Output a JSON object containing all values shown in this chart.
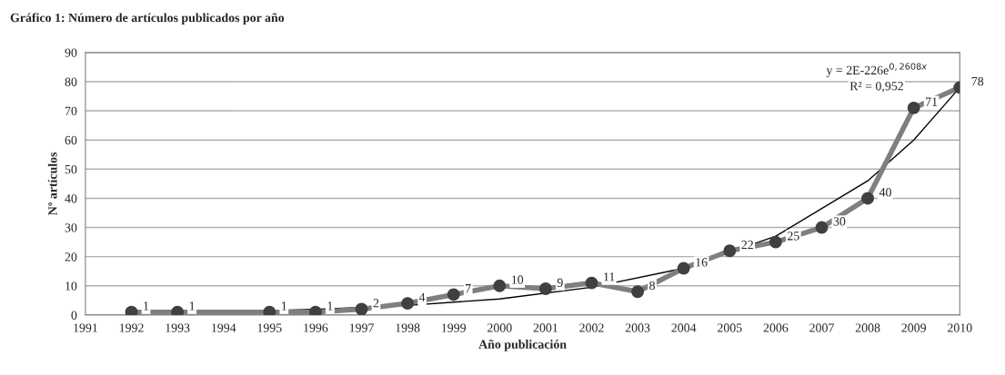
{
  "chart_data": {
    "type": "line",
    "title": "Gráfico 1: Número de artículos publicados por año",
    "xlabel": "Año publicación",
    "ylabel": "Nº artículos",
    "xlim": [
      1991,
      2010
    ],
    "xticks": [
      1991,
      1992,
      1993,
      1994,
      1995,
      1996,
      1997,
      1998,
      1999,
      2000,
      2001,
      2002,
      2003,
      2004,
      2005,
      2006,
      2007,
      2008,
      2009,
      2010
    ],
    "ylim": [
      0,
      90
    ],
    "yticks": [
      0,
      10,
      20,
      30,
      40,
      50,
      60,
      70,
      80,
      90
    ],
    "grid": "y",
    "marker": "circle",
    "series": [
      {
        "color": "#7f7f7f",
        "x": [
          1992,
          1993,
          1995,
          1996,
          1997,
          1998,
          1999,
          2000,
          2001,
          2002,
          2003,
          2004,
          2005,
          2006,
          2007,
          2008,
          2009,
          2010
        ],
        "values": [
          1,
          1,
          1,
          1,
          2,
          4,
          7,
          10,
          9,
          11,
          8,
          16,
          22,
          25,
          30,
          40,
          71,
          78
        ],
        "value_labels": [
          "1",
          "1",
          "1",
          "1",
          "2",
          "4",
          "7",
          "10",
          "9",
          "11",
          "8",
          "16",
          "22",
          "25",
          "30",
          "40",
          "71",
          "78"
        ]
      },
      {
        "color": "#000000",
        "marker": "none",
        "x": [
          1992,
          1994,
          1996,
          1998,
          2000,
          2002,
          2004,
          2006,
          2008,
          2009,
          2010
        ],
        "values": [
          0.7,
          1.1,
          1.9,
          3.3,
          5.5,
          9.5,
          16,
          27,
          46,
          60,
          78
        ]
      }
    ],
    "annotations": [
      "y = 2E-226e$^{0,2608x}$",
      "R² = 0,952"
    ]
  }
}
